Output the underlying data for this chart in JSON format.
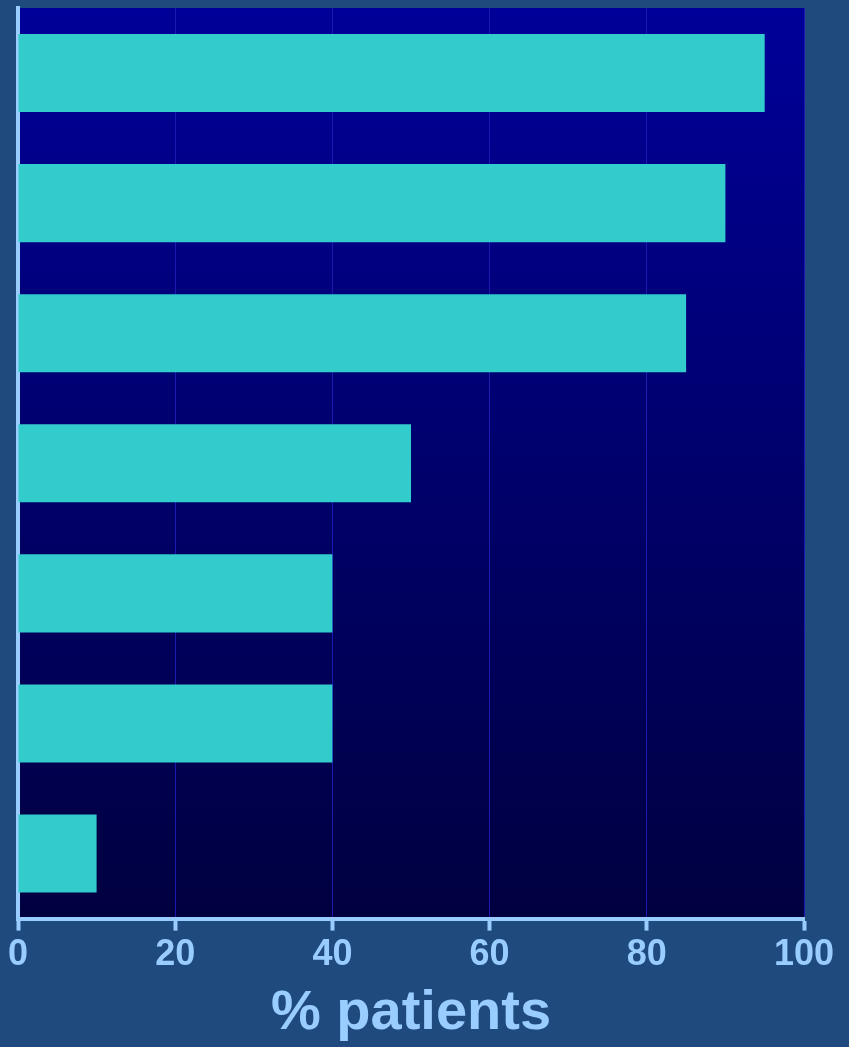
{
  "chart_data": {
    "type": "bar",
    "orientation": "horizontal",
    "xlabel": "% patients",
    "categories": [
      null,
      null,
      null,
      null,
      null,
      null,
      null
    ],
    "values": [
      95,
      90,
      85,
      50,
      40,
      40,
      10
    ],
    "color": "#33cccc",
    "xlim": [
      0,
      100
    ],
    "xticks": [
      0,
      20,
      40,
      60,
      80,
      100
    ],
    "grid": "x",
    "legend": false
  }
}
